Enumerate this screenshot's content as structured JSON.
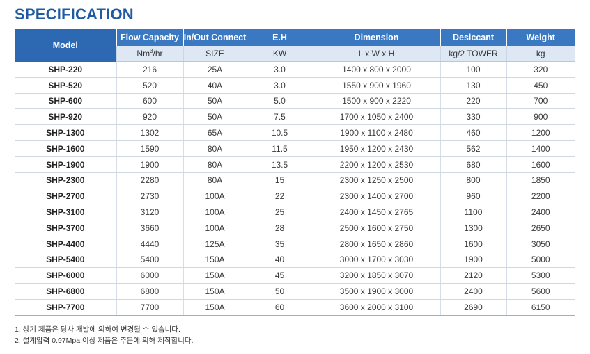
{
  "title": "SPECIFICATION",
  "headers": {
    "model": "Model",
    "flow": "Flow Capacity",
    "flow_unit_pre": "Nm",
    "flow_unit_sup": "3",
    "flow_unit_post": "/hr",
    "conn": "In/Out Connect",
    "conn_unit": "SIZE",
    "eh": "E.H",
    "eh_unit": "KW",
    "dim": "Dimension",
    "dim_unit": "L x W x H",
    "des": "Desiccant",
    "des_unit": "kg/2 TOWER",
    "wt": "Weight",
    "wt_unit": "kg"
  },
  "rows": [
    [
      "SHP-220",
      "216",
      "25A",
      "3.0",
      "1400 x 800 x 2000",
      "100",
      "320"
    ],
    [
      "SHP-520",
      "520",
      "40A",
      "3.0",
      "1550 x 900 x 1960",
      "130",
      "450"
    ],
    [
      "SHP-600",
      "600",
      "50A",
      "5.0",
      "1500 x 900 x 2220",
      "220",
      "700"
    ],
    [
      "SHP-920",
      "920",
      "50A",
      "7.5",
      "1700 x 1050 x 2400",
      "330",
      "900"
    ],
    [
      "SHP-1300",
      "1302",
      "65A",
      "10.5",
      "1900 x 1100 x 2480",
      "460",
      "1200"
    ],
    [
      "SHP-1600",
      "1590",
      "80A",
      "11.5",
      "1950 x 1200 x 2430",
      "562",
      "1400"
    ],
    [
      "SHP-1900",
      "1900",
      "80A",
      "13.5",
      "2200 x 1200 x 2530",
      "680",
      "1600"
    ],
    [
      "SHP-2300",
      "2280",
      "80A",
      "15",
      "2300 x 1250 x 2500",
      "800",
      "1850"
    ],
    [
      "SHP-2700",
      "2730",
      "100A",
      "22",
      "2300 x 1400 x 2700",
      "960",
      "2200"
    ],
    [
      "SHP-3100",
      "3120",
      "100A",
      "25",
      "2400 x 1450 x 2765",
      "1100",
      "2400"
    ],
    [
      "SHP-3700",
      "3660",
      "100A",
      "28",
      "2500 x 1600 x 2750",
      "1300",
      "2650"
    ],
    [
      "SHP-4400",
      "4440",
      "125A",
      "35",
      "2800 x 1650 x 2860",
      "1600",
      "3050"
    ],
    [
      "SHP-5400",
      "5400",
      "150A",
      "40",
      "3000 x 1700 x 3030",
      "1900",
      "5000"
    ],
    [
      "SHP-6000",
      "6000",
      "150A",
      "45",
      "3200 x 1850 x 3070",
      "2120",
      "5300"
    ],
    [
      "SHP-6800",
      "6800",
      "150A",
      "50",
      "3500 x 1900 x 3000",
      "2400",
      "5600"
    ],
    [
      "SHP-7700",
      "7700",
      "150A",
      "60",
      "3600 x 2000 x 3100",
      "2690",
      "6150"
    ]
  ],
  "notes": [
    "1. 상기 제품은 당사 개발에 의하여 변경될 수 있습니다.",
    "2. 설계압력 0.97Mpa 이상 제품은 주문에 의해 제작합니다."
  ],
  "colors": {
    "title": "#1f5aa3",
    "header_bg": "#3a78c2",
    "subheader_bg": "#dde8f4"
  }
}
